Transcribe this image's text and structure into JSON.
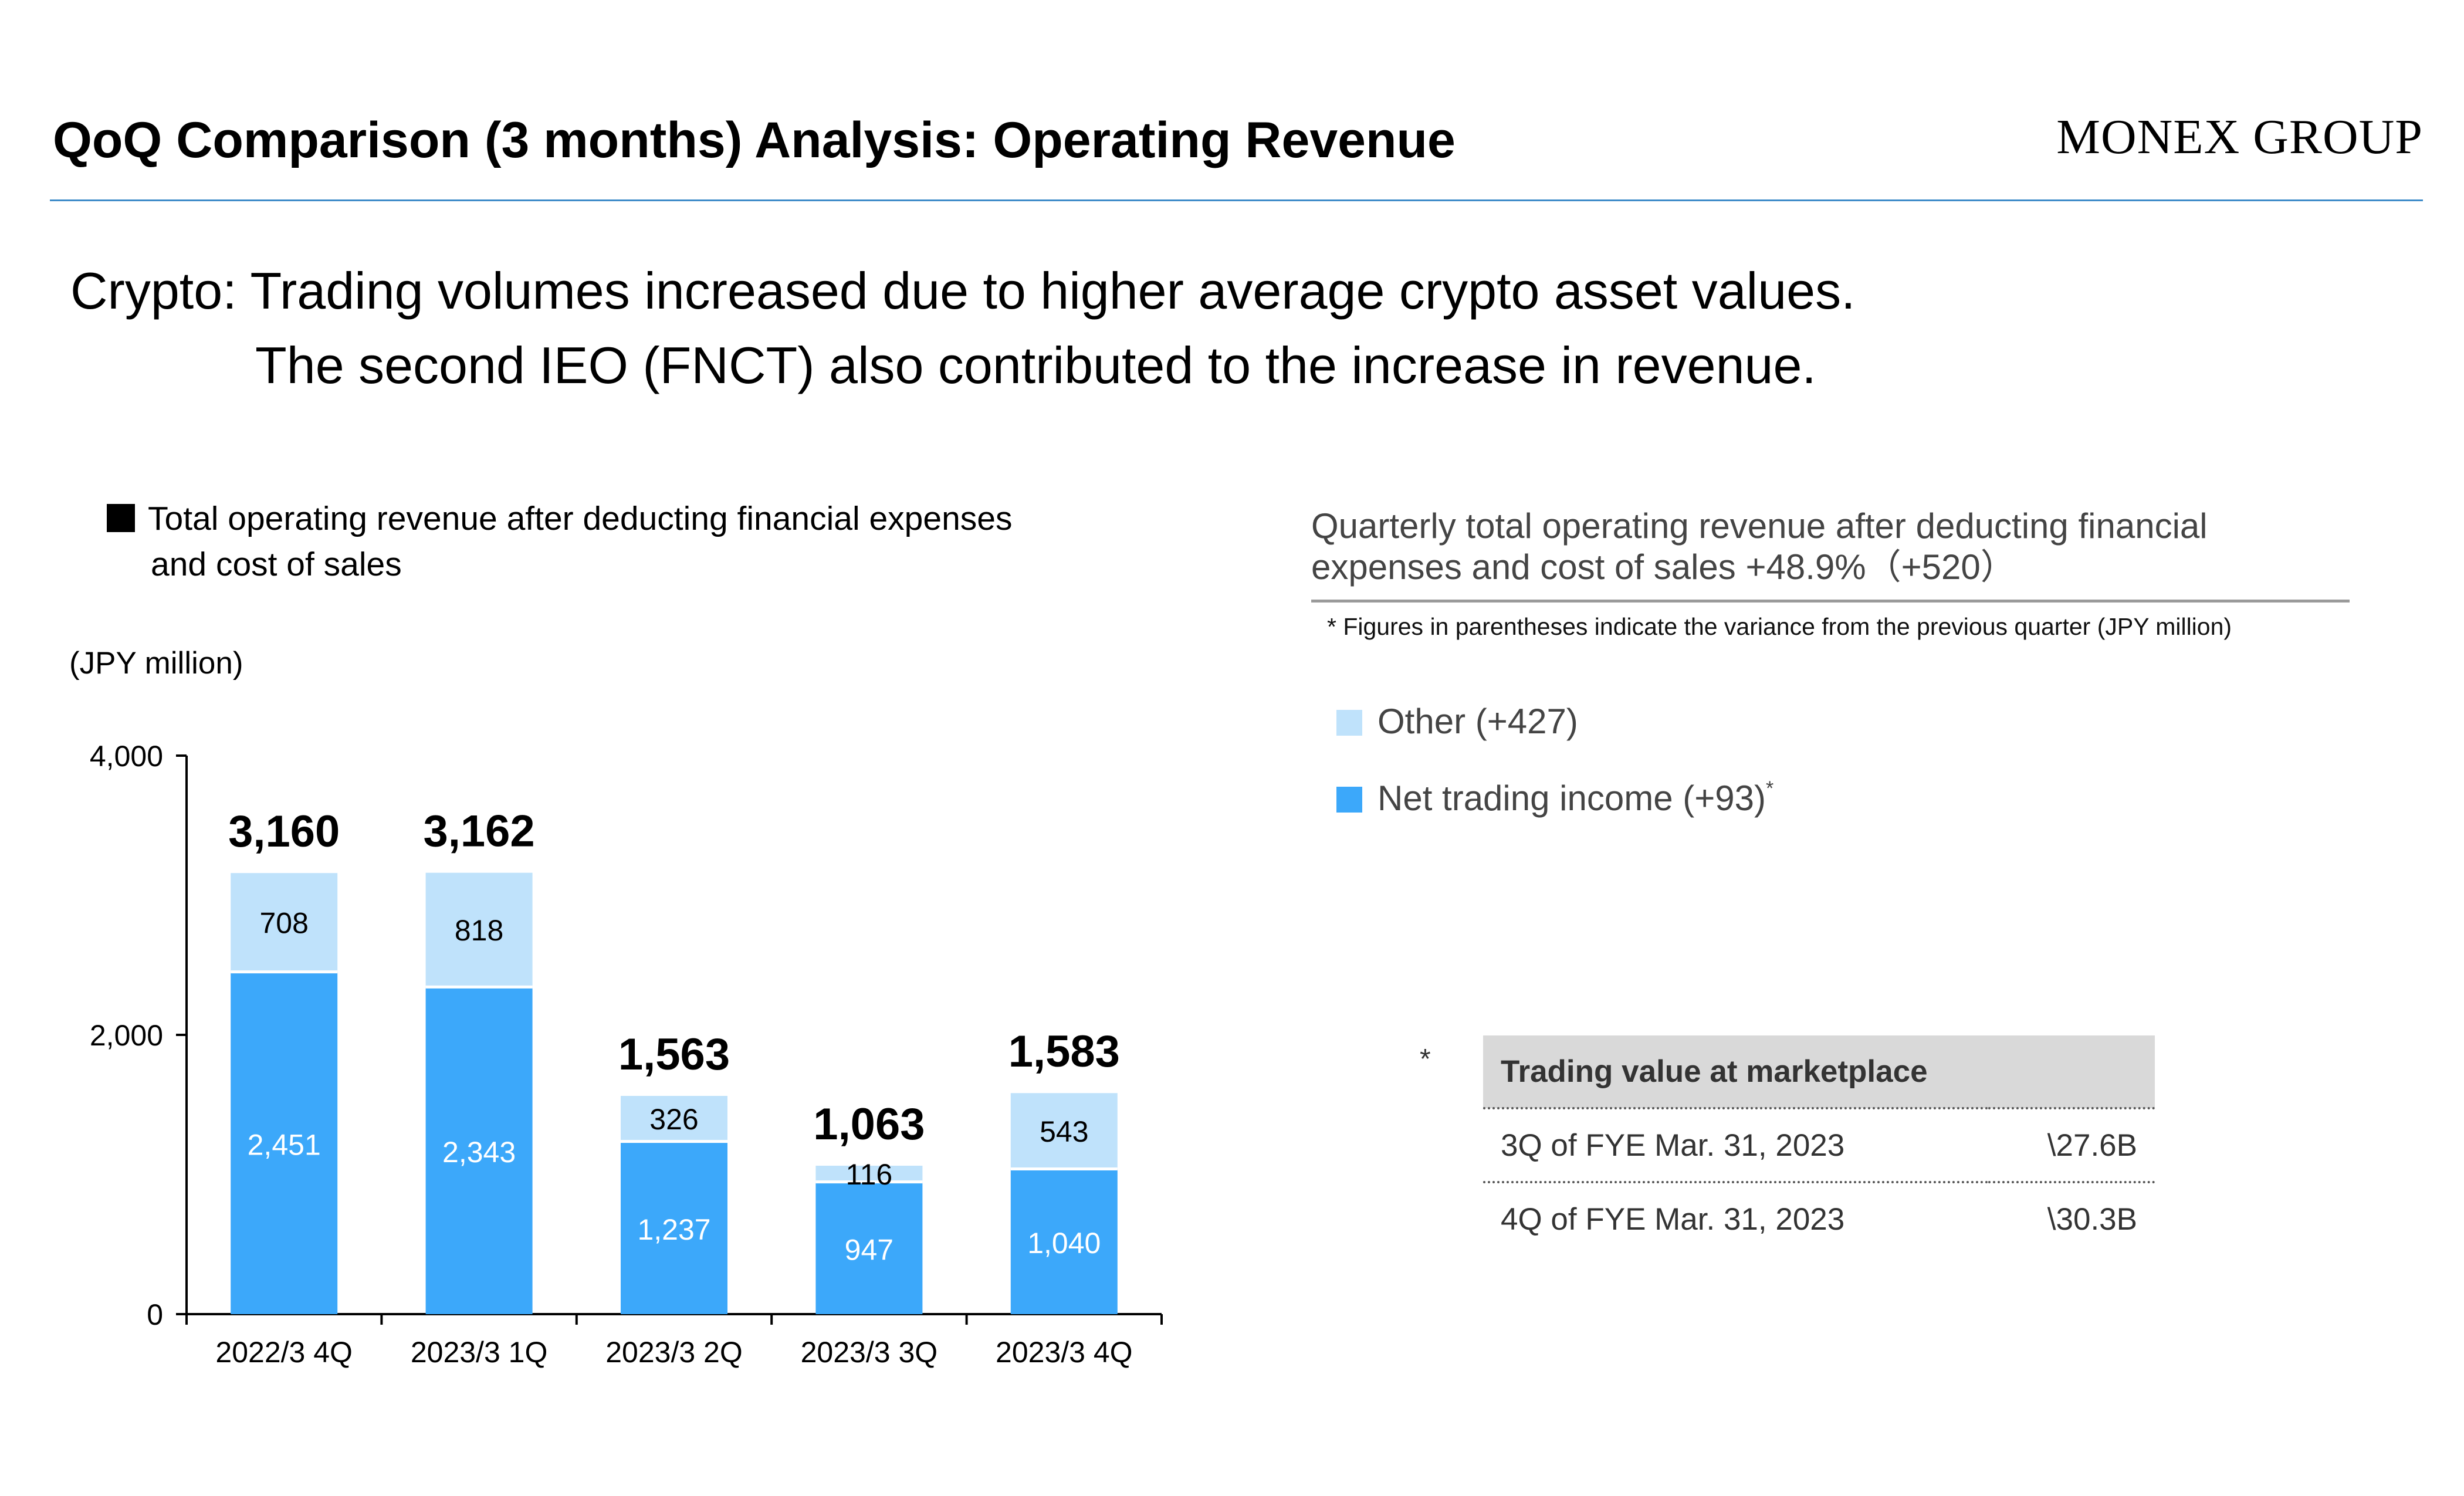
{
  "header": {
    "title": "QoQ Comparison (3 months) Analysis: Operating Revenue",
    "brand": "MONEX GROUP"
  },
  "message": {
    "line1": "Crypto: Trading volumes increased due to higher average crypto asset values.",
    "line2": "The second IEO (FNCT) also contributed to the increase in revenue."
  },
  "left_panel": {
    "legend_line1": "Total operating revenue after deducting financial expenses",
    "legend_line2": "and cost of sales",
    "unit": "(JPY million)"
  },
  "chart_data": {
    "type": "bar",
    "stacked": true,
    "categories": [
      "2022/3 4Q",
      "2023/3 1Q",
      "2023/3 2Q",
      "2023/3 3Q",
      "2023/3 4Q"
    ],
    "series": [
      {
        "name": "Net trading income",
        "values": [
          2451,
          2343,
          1237,
          947,
          1040
        ],
        "color": "#3ca8fa"
      },
      {
        "name": "Other",
        "values": [
          708,
          818,
          326,
          116,
          543
        ],
        "color": "#bfe2fb"
      }
    ],
    "totals": [
      3160,
      3162,
      1563,
      1063,
      1583
    ],
    "value_labels": {
      "net": [
        "2,451",
        "2,343",
        "1,237",
        "947",
        "1,040"
      ],
      "other": [
        "708",
        "818",
        "326",
        "116",
        "543"
      ],
      "totals": [
        "3,160",
        "3,162",
        "1,563",
        "1,063",
        "1,583"
      ]
    },
    "ylim": [
      0,
      4000
    ],
    "yticks": [
      0,
      2000,
      4000
    ],
    "ytick_labels": [
      "0",
      "2,000",
      "4,000"
    ],
    "grid": false
  },
  "right_panel": {
    "title_line1": "Quarterly total operating revenue after deducting financial",
    "title_line2": "expenses and cost of sales +48.9%（+520）",
    "footnote": "* Figures in parentheses indicate the variance from the previous quarter (JPY million)",
    "legend_other": "Other (+427)",
    "legend_net": "Net trading income (+93)",
    "legend_net_mark": "*",
    "table_mark": "*",
    "table": {
      "header": "Trading value at marketplace",
      "rows": [
        {
          "label": "3Q of FYE Mar. 31, 2023",
          "value": "\\27.6B"
        },
        {
          "label": "4Q of FYE Mar. 31, 2023",
          "value": "\\30.3B"
        }
      ]
    }
  },
  "colors": {
    "net": "#3ca8fa",
    "other": "#bfe2fb",
    "rule": "#3f8cc9"
  }
}
